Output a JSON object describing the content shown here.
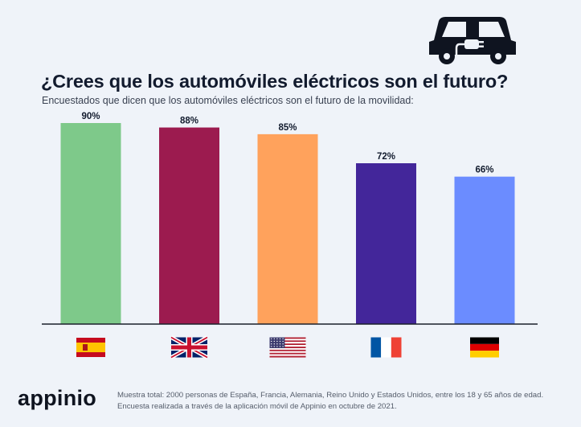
{
  "chart_data": {
    "type": "bar",
    "title": "¿Crees que los automóviles eléctricos son el futuro?",
    "subtitle": "Encuestados que dicen que los automóviles eléctricos son el futuro de la movilidad:",
    "categories": [
      "España",
      "Reino Unido",
      "Estados Unidos",
      "Francia",
      "Alemania"
    ],
    "category_icons": [
      "flag-spain-icon",
      "flag-uk-icon",
      "flag-usa-icon",
      "flag-france-icon",
      "flag-germany-icon"
    ],
    "values": [
      90,
      88,
      85,
      72,
      66
    ],
    "value_labels": [
      "90%",
      "88%",
      "85%",
      "72%",
      "66%"
    ],
    "colors": [
      "#7ec98a",
      "#9c1b4f",
      "#ffa25c",
      "#43269a",
      "#6b8cff"
    ],
    "ylim": [
      0,
      100
    ],
    "xlabel": "",
    "ylabel": "",
    "grid": false,
    "legend": "none"
  },
  "brand": {
    "logo_text": "appinio",
    "icon": "electric-car-icon"
  },
  "footnote": "Muestra total: 2000 personas de España, Francia, Alemania, Reino Unido y Estados Unidos, entre los 18 y 65 años de edad. Encuesta realizada a través de la aplicación móvil de Appinio en octubre de 2021."
}
